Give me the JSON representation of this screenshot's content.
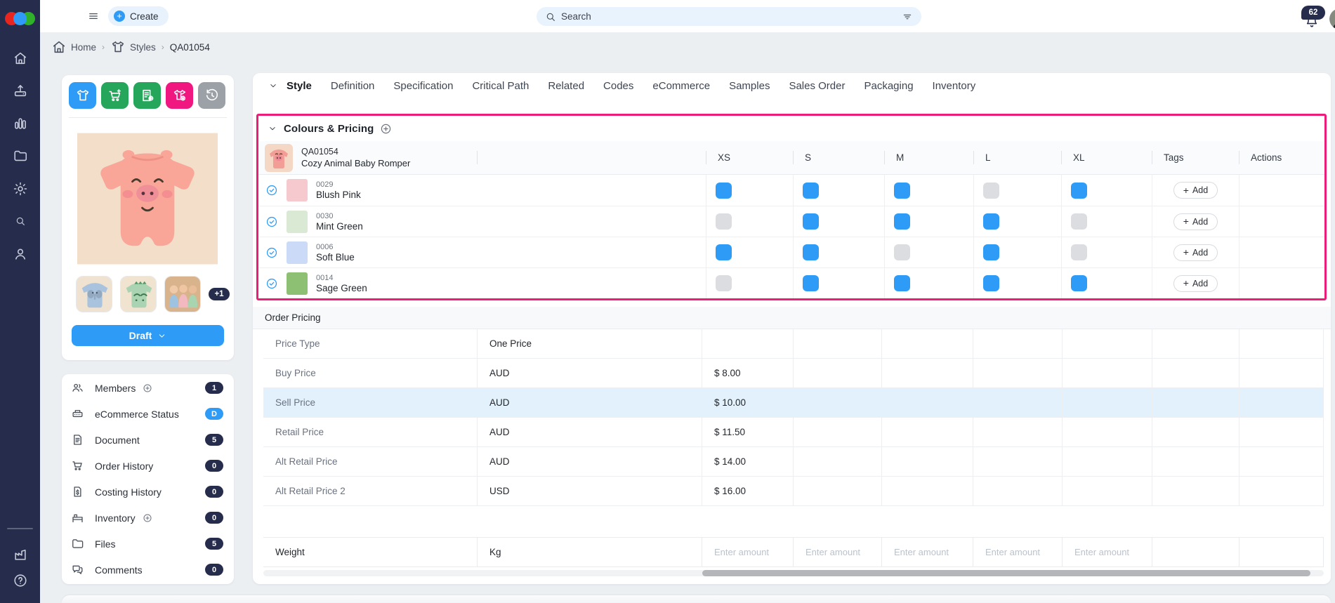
{
  "colors": {
    "accent_blue": "#2E9CF6",
    "highlight_outline": "#EB1D78",
    "sell_row_highlight": "#E3F1FC",
    "badge_navy": "#262C4C",
    "checkbox_off": "#DCDDE0"
  },
  "sidebar": {
    "top_icons": [
      "home",
      "upload",
      "analytics",
      "folder",
      "settings",
      "search",
      "profile"
    ],
    "bottom_icons": [
      "factory",
      "help"
    ]
  },
  "topbar": {
    "create_label": "Create",
    "search_placeholder": "Search",
    "notification_count": "62"
  },
  "breadcrumb": {
    "items": [
      "Home",
      "Styles",
      "QA01054"
    ]
  },
  "tabs": [
    "Style",
    "Definition",
    "Specification",
    "Critical Path",
    "Related",
    "Codes",
    "eCommerce",
    "Samples",
    "Sales Order",
    "Packaging",
    "Inventory"
  ],
  "active_tab": "Style",
  "left_panel": {
    "action_buttons": [
      {
        "icon": "shirt",
        "color": "#2E9CF6",
        "name": "style"
      },
      {
        "icon": "cart-plus",
        "color": "#26A65B",
        "name": "add-to-order"
      },
      {
        "icon": "doc-plus",
        "color": "#26A65B",
        "name": "add-document"
      },
      {
        "icon": "shirt-x",
        "color": "#F01880",
        "name": "deactivate-style"
      },
      {
        "icon": "history",
        "color": "#9CA1A8",
        "name": "history"
      }
    ],
    "more_images": "+1",
    "status_label": "Draft"
  },
  "side_menu": [
    {
      "icon": "members",
      "label": "Members",
      "has_add": true,
      "badge": "1",
      "badge_style": "navy"
    },
    {
      "icon": "ecommerce",
      "label": "eCommerce Status",
      "has_add": false,
      "badge": "D",
      "badge_style": "blue"
    },
    {
      "icon": "document",
      "label": "Document",
      "has_add": false,
      "badge": "5",
      "badge_style": "navy"
    },
    {
      "icon": "order-history",
      "label": "Order History",
      "has_add": false,
      "badge": "0",
      "badge_style": "navy"
    },
    {
      "icon": "costing",
      "label": "Costing History",
      "has_add": false,
      "badge": "0",
      "badge_style": "navy"
    },
    {
      "icon": "inventory",
      "label": "Inventory",
      "has_add": true,
      "badge": "0",
      "badge_style": "navy"
    },
    {
      "icon": "files",
      "label": "Files",
      "has_add": false,
      "badge": "5",
      "badge_style": "navy"
    },
    {
      "icon": "comments",
      "label": "Comments",
      "has_add": false,
      "badge": "0",
      "badge_style": "navy"
    }
  ],
  "colours_pricing": {
    "title": "Colours & Pricing",
    "style": {
      "code": "QA01054",
      "name": "Cozy Animal Baby Romper"
    },
    "size_columns": [
      "XS",
      "S",
      "M",
      "L",
      "XL"
    ],
    "tags_column": "Tags",
    "actions_column": "Actions",
    "add_button_label": "Add",
    "rows": [
      {
        "code": "0029",
        "name": "Blush Pink",
        "swatch": "#F6C9CE",
        "sizes": [
          true,
          true,
          true,
          false,
          true
        ]
      },
      {
        "code": "0030",
        "name": "Mint Green",
        "swatch": "#D9E9D3",
        "sizes": [
          false,
          true,
          true,
          true,
          false
        ]
      },
      {
        "code": "0006",
        "name": "Soft Blue",
        "swatch": "#CBDAF7",
        "sizes": [
          true,
          true,
          false,
          true,
          false
        ]
      },
      {
        "code": "0014",
        "name": "Sage Green",
        "swatch": "#8EC073",
        "sizes": [
          false,
          true,
          true,
          true,
          true
        ]
      }
    ]
  },
  "order_pricing": {
    "title": "Order Pricing",
    "rows": [
      {
        "label": "Price Type",
        "value": "One Price",
        "amount": "",
        "highlight": false
      },
      {
        "label": "Buy Price",
        "value": "AUD",
        "amount": "$ 8.00",
        "highlight": false
      },
      {
        "label": "Sell Price",
        "value": "AUD",
        "amount": "$ 10.00",
        "highlight": true
      },
      {
        "label": "Retail Price",
        "value": "AUD",
        "amount": "$ 11.50",
        "highlight": false
      },
      {
        "label": "Alt Retail Price",
        "value": "AUD",
        "amount": "$ 14.00",
        "highlight": false
      },
      {
        "label": "Alt Retail Price 2",
        "value": "USD",
        "amount": "$ 16.00",
        "highlight": false
      }
    ],
    "weight_row": {
      "label": "Weight",
      "unit": "Kg",
      "placeholder": "Enter amount",
      "input_count": 5
    }
  }
}
